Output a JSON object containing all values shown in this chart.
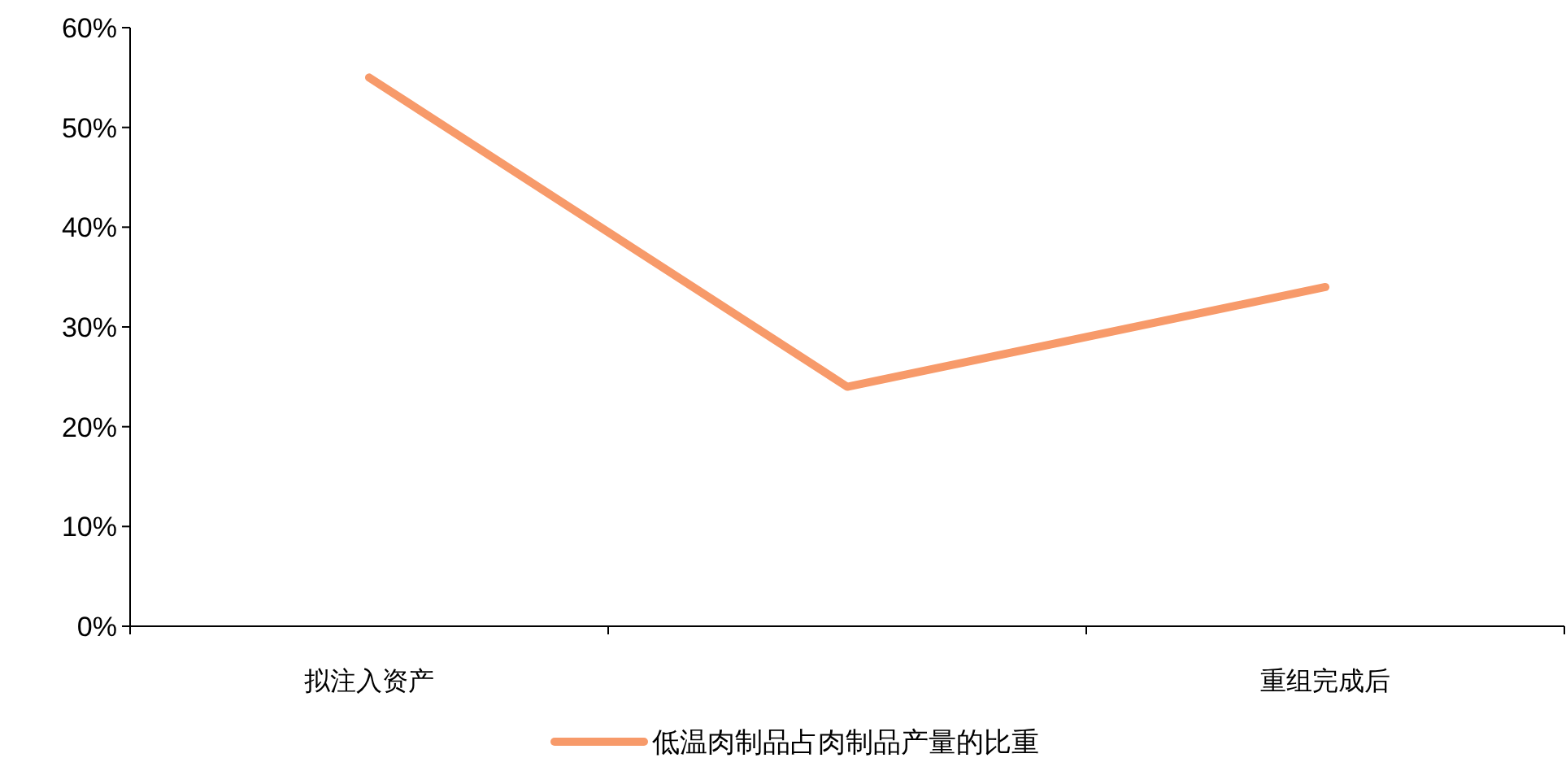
{
  "chart_data": {
    "type": "line",
    "categories": [
      "拟注入资产",
      null,
      "重组完成后"
    ],
    "series": [
      {
        "name": "低温肉制品占肉制品产量的比重",
        "color": "#f79a6a",
        "values": [
          55,
          24,
          34
        ]
      }
    ],
    "ylim": [
      0,
      60
    ],
    "yticks": [
      {
        "value": 0,
        "label": "0%"
      },
      {
        "value": 10,
        "label": "10%"
      },
      {
        "value": 20,
        "label": "20%"
      },
      {
        "value": 30,
        "label": "30%"
      },
      {
        "value": 40,
        "label": "40%"
      },
      {
        "value": 50,
        "label": "50%"
      },
      {
        "value": 60,
        "label": "60%"
      }
    ],
    "grid": false,
    "legend": "bottom",
    "marker": "none",
    "line_style": "solid"
  }
}
